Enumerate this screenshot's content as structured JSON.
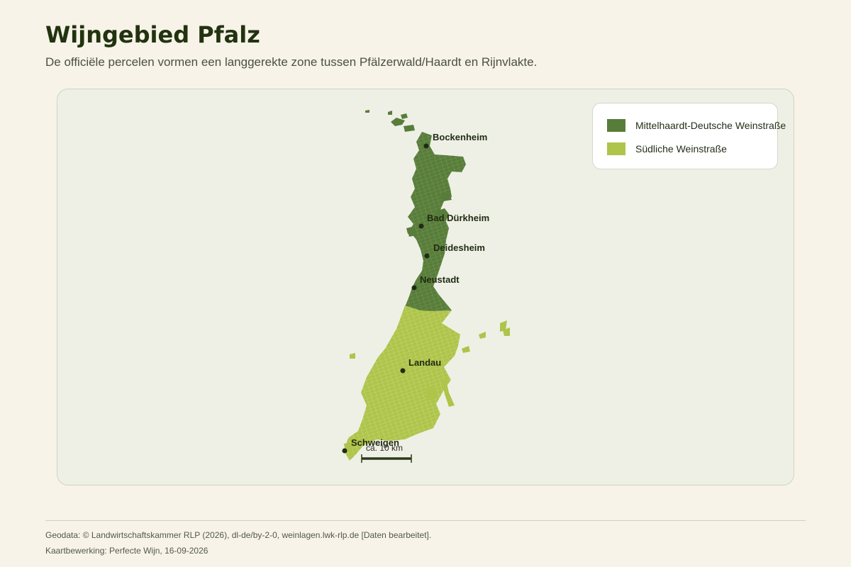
{
  "header": {
    "title": "Wijngebied Pfalz",
    "subtitle": "De officiële percelen vormen een langgerekte zone tussen Pfälzerwald/Haardt en Rijnvlakte."
  },
  "legend": {
    "items": [
      {
        "label": "Mittelhaardt-Deutsche Weinstraße",
        "color": "#587d3a"
      },
      {
        "label": "Südliche Weinstraße",
        "color": "#aec44a"
      }
    ]
  },
  "map": {
    "cities": [
      {
        "name": "Bockenheim"
      },
      {
        "name": "Bad Dürkheim"
      },
      {
        "name": "Deidesheim"
      },
      {
        "name": "Neustadt"
      },
      {
        "name": "Landau"
      },
      {
        "name": "Schweigen"
      }
    ],
    "scale_bar": {
      "label": "ca. 10 km"
    }
  },
  "footer": {
    "source": "Geodata: © Landwirtschaftskammer RLP (2026), dl-de/by-2-0, weinlagen.lwk-rlp.de [Daten bearbeitet].",
    "credit": "Kaartbewerking: Perfecte Wijn, 16-09-2026"
  }
}
